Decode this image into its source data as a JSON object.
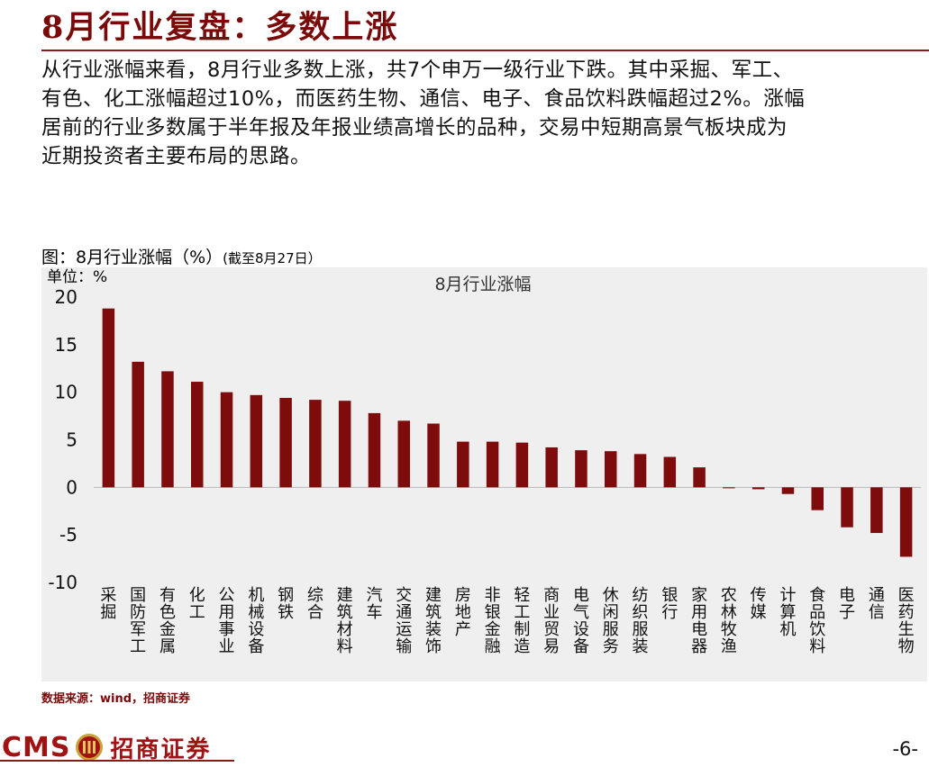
{
  "header": {
    "title": "8月行业复盘：多数上涨"
  },
  "summary": {
    "lines": [
      "从行业涨幅来看，8月行业多数上涨，共7个申万一级行业下跌。其中采掘、军工、",
      "有色、化工涨幅超过10%，而医药生物、通信、电子、食品饮料跌幅超过2%。涨幅",
      "居前的行业多数属于半年报及年报业绩高增长的品种，交易中短期高景气板块成为",
      "近期投资者主要布局的思路。"
    ]
  },
  "figure": {
    "title": "图：8月行业涨幅（%）",
    "subtitle": "(截至8月27日）",
    "source": "数据来源：wind，招商证券"
  },
  "chart_data": {
    "type": "bar",
    "title": "8月行业涨幅",
    "unit_label": "单位：%",
    "xlabel": "",
    "ylabel": "",
    "ylim": [
      -10,
      20
    ],
    "yticks": [
      20,
      15,
      10,
      5,
      0,
      -5,
      -10
    ],
    "grid": false,
    "bar_color": "#7f0c0c",
    "categories": [
      "采掘",
      "国防军工",
      "有色金属",
      "化工",
      "公用事业",
      "机械设备",
      "钢铁",
      "综合",
      "建筑材料",
      "汽车",
      "交通运输",
      "建筑装饰",
      "房地产",
      "非银金融",
      "轻工制造",
      "商业贸易",
      "电气设备",
      "休闲服务",
      "纺织服装",
      "银行",
      "家用电器",
      "农林牧渔",
      "传媒",
      "计算机",
      "食品饮料",
      "电子",
      "通信",
      "医药生物"
    ],
    "values": [
      18.8,
      13.2,
      12.2,
      11.1,
      10.0,
      9.7,
      9.4,
      9.2,
      9.1,
      7.8,
      7.0,
      6.7,
      4.8,
      4.8,
      4.7,
      4.2,
      3.9,
      3.8,
      3.5,
      3.2,
      2.1,
      -0.1,
      -0.2,
      -0.7,
      -2.4,
      -4.2,
      -4.8,
      -7.3
    ]
  },
  "footer": {
    "logo_text": "CMS",
    "logo_cn": "招商证券",
    "page_number": "-6-"
  }
}
